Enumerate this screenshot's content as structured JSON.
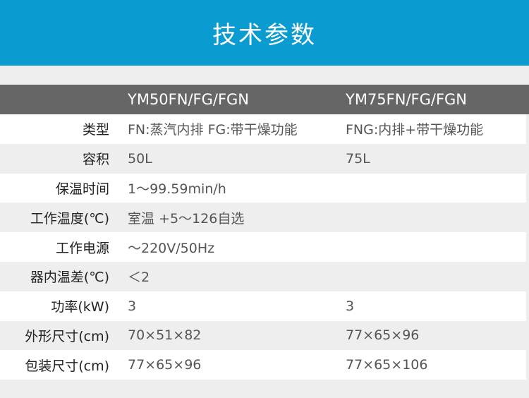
{
  "title": "技术参数",
  "columns": [
    "",
    "YM50FN/FG/FGN",
    "YM75FN/FG/FGN"
  ],
  "rows": [
    {
      "label": "类型",
      "c1": "FN:蒸汽内排  FG:带干燥功能",
      "c2": "FNG:内排+带干燥功能"
    },
    {
      "label": "容积",
      "c1": "50L",
      "c2": "75L"
    },
    {
      "label": "保温时间",
      "c1": "1～99.59min/h",
      "c2": ""
    },
    {
      "label": "工作温度(℃)",
      "c1": "室温 +5～126自选",
      "c2": ""
    },
    {
      "label": "工作电源",
      "c1": "～220V/50Hz",
      "c2": ""
    },
    {
      "label": "器内温差(℃)",
      "c1": "＜2",
      "c2": ""
    },
    {
      "label": "功率(kW)",
      "c1": "3",
      "c2": "3"
    },
    {
      "label": "外形尺寸(cm)",
      "c1": "70×51×82",
      "c2": "77×65×96"
    },
    {
      "label": "包装尺寸(cm)",
      "c1": "77×65×96",
      "c2": "77×65×106"
    }
  ],
  "colors": {
    "banner": "#0a9bd0",
    "header_row": "#666666",
    "stripe": "#eeeeee"
  }
}
